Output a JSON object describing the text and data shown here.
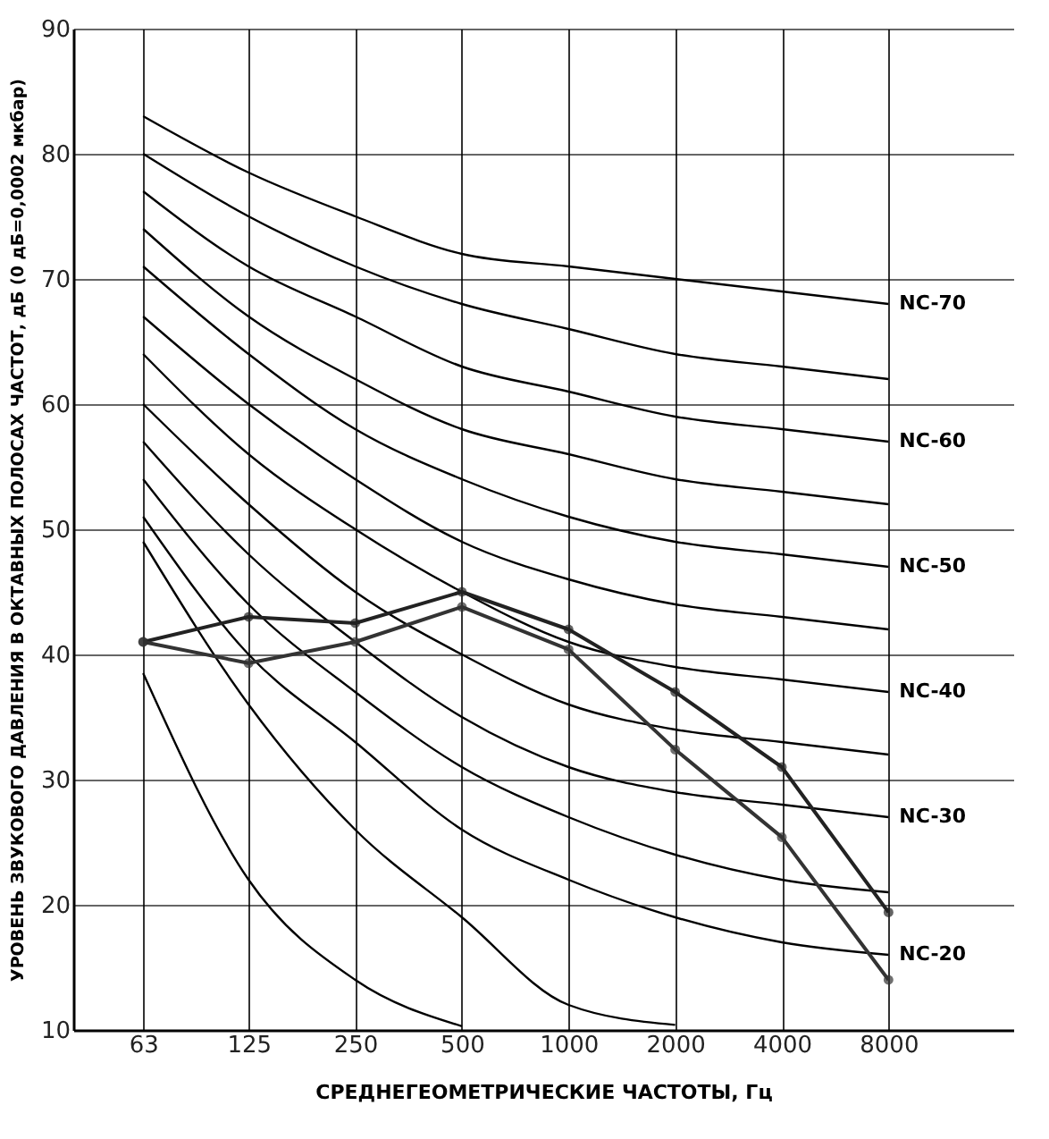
{
  "chart_data": {
    "type": "line",
    "xlabel": "СРЕДНЕГЕОМЕТРИЧЕСКИЕ ЧАСТОТЫ, Гц",
    "ylabel": "УРОВЕНЬ ЗВУКОВОГО ДАВЛЕНИЯ В ОКТАВНЫХ ПОЛОСАХ ЧАСТОТ, дБ (0 дБ=0,0002 мкбар)",
    "x": [
      63,
      125,
      250,
      500,
      1000,
      2000,
      4000,
      8000
    ],
    "log": "x",
    "xlim": [
      40,
      18000
    ],
    "xticks": [
      63,
      125,
      250,
      500,
      1000,
      2000,
      4000,
      8000
    ],
    "ylim": [
      10,
      90
    ],
    "yticks": [
      10,
      20,
      30,
      40,
      50,
      60,
      70,
      80,
      90
    ],
    "grid": true,
    "legend": false,
    "marker": "none",
    "series": [
      {
        "name": "NC-70",
        "color": "#000000",
        "values": [
          83,
          78.5,
          75,
          72,
          71,
          70,
          69,
          68
        ]
      },
      {
        "color": "#000000",
        "values": [
          80,
          75,
          71,
          68,
          66,
          64,
          63,
          62
        ]
      },
      {
        "name": "NC-60",
        "color": "#000000",
        "values": [
          77,
          71,
          67,
          63,
          61,
          59,
          58,
          57
        ]
      },
      {
        "color": "#000000",
        "values": [
          74,
          67,
          62,
          58,
          56,
          54,
          53,
          52
        ]
      },
      {
        "name": "NC-50",
        "color": "#000000",
        "values": [
          71,
          64,
          58,
          54,
          51,
          49,
          48,
          47
        ]
      },
      {
        "color": "#000000",
        "values": [
          67,
          60,
          54,
          49,
          46,
          44,
          43,
          42
        ]
      },
      {
        "name": "NC-40",
        "color": "#000000",
        "values": [
          64,
          56,
          50,
          45,
          41,
          39,
          38,
          37
        ]
      },
      {
        "color": "#000000",
        "values": [
          60,
          52,
          45,
          40,
          36,
          34,
          33,
          32
        ]
      },
      {
        "name": "NC-30",
        "color": "#000000",
        "values": [
          57,
          48,
          41,
          35,
          31,
          29,
          28,
          27
        ]
      },
      {
        "color": "#000000",
        "values": [
          54,
          44,
          37,
          31,
          27,
          24,
          22,
          21
        ]
      },
      {
        "name": "NC-20",
        "color": "#000000",
        "values": [
          51,
          40,
          33,
          26,
          22,
          19,
          17,
          16
        ]
      },
      {
        "color": "#000000",
        "values": [
          49,
          36,
          26,
          19,
          12,
          10.4,
          null,
          null
        ]
      },
      {
        "color": "#000000",
        "values": [
          38.5,
          22,
          14,
          10.3,
          null,
          null,
          null,
          null
        ]
      },
      {
        "color": "#222222",
        "marker": "circle",
        "values": [
          41,
          43,
          42.5,
          45,
          42,
          37,
          31,
          19.4
        ]
      },
      {
        "color": "#333333",
        "marker": "circle",
        "values": [
          41,
          39.3,
          41,
          43.8,
          40.4,
          32.4,
          25.4,
          14
        ]
      }
    ]
  }
}
